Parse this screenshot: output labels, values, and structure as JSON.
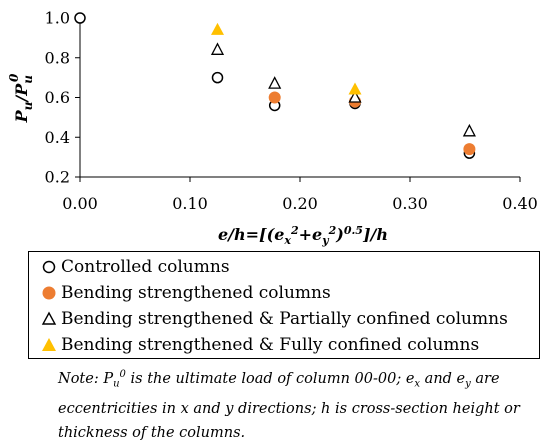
{
  "chart_data": {
    "type": "scatter",
    "title": "",
    "xlim": [
      0.0,
      0.4
    ],
    "ylim": [
      0.2,
      1.0
    ],
    "x_ticks": [
      "0.00",
      "0.10",
      "0.20",
      "0.30",
      "0.40"
    ],
    "y_ticks": [
      "0.2",
      "0.4",
      "0.6",
      "0.8",
      "1.0"
    ],
    "ylabel": {
      "base": "P",
      "sub1": "u",
      "slash": "/P",
      "sub2": "u",
      "sup2": "0"
    },
    "xlabel": {
      "p1": "e/h=[(e",
      "sub1": "x",
      "sup1": "2",
      "p2": "+e",
      "sub2": "y",
      "sup2": "2",
      "p3": ")",
      "sup3": "0.5",
      "p4": "]/h"
    },
    "grid": false,
    "legend_position": "bottom",
    "series": [
      {
        "name": "Controlled columns",
        "marker": "circle-open",
        "color": "#000000",
        "points": [
          [
            0.0,
            1.0
          ],
          [
            0.125,
            0.7
          ],
          [
            0.177,
            0.56
          ],
          [
            0.25,
            0.57
          ],
          [
            0.354,
            0.32
          ]
        ]
      },
      {
        "name": "Bending strengthened columns",
        "marker": "circle-filled",
        "color": "#ED7D31",
        "points": [
          [
            0.177,
            0.6
          ],
          [
            0.25,
            0.58
          ],
          [
            0.354,
            0.34
          ]
        ]
      },
      {
        "name": "Bending strengthened & Partially confined columns",
        "marker": "triangle-open",
        "color": "#000000",
        "points": [
          [
            0.125,
            0.84
          ],
          [
            0.177,
            0.67
          ],
          [
            0.25,
            0.6
          ],
          [
            0.354,
            0.43
          ]
        ]
      },
      {
        "name": "Bending strengthened & Fully confined columns",
        "marker": "triangle-filled",
        "color": "#FFC000",
        "points": [
          [
            0.125,
            0.94
          ],
          [
            0.25,
            0.64
          ]
        ]
      }
    ]
  },
  "note": {
    "t1": "Note: P",
    "s1": "u",
    "u1": "0",
    "t2": " is the ultimate load of column 00-00; e",
    "s2": "x",
    "t3": " and e",
    "s3": "y",
    "t4": " are eccentricities in x and y directions; h is cross-section height or thickness of the columns."
  }
}
